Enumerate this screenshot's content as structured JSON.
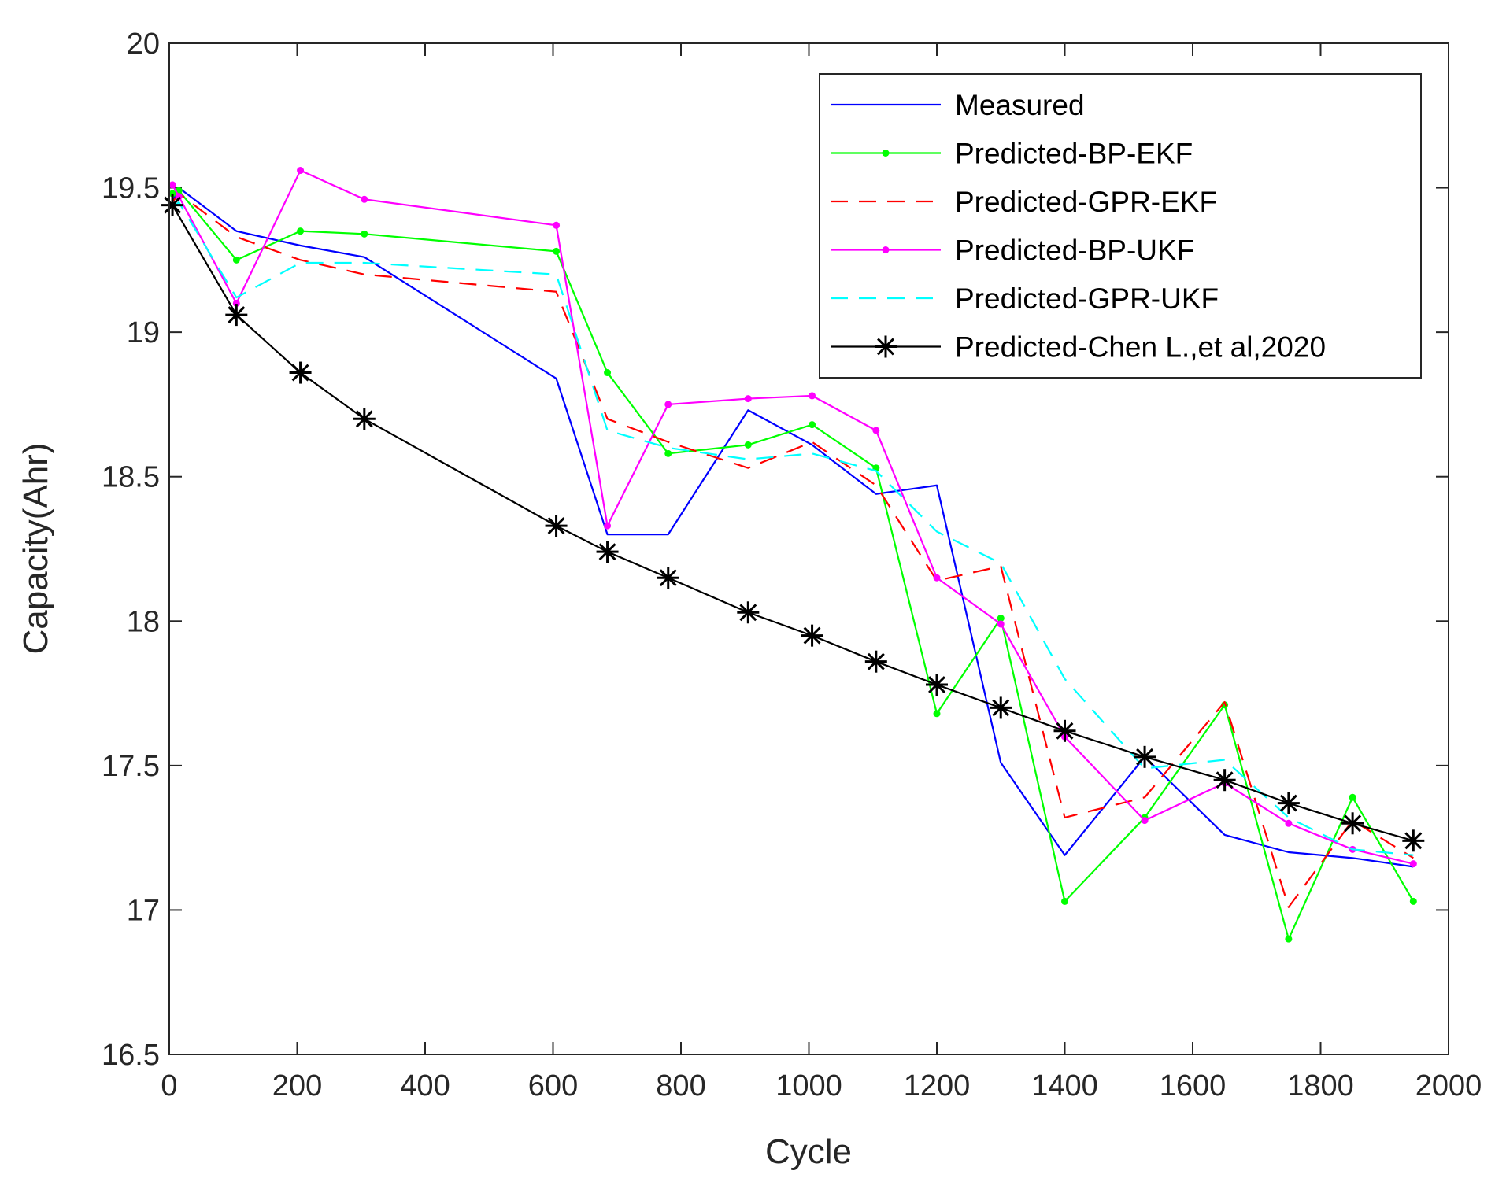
{
  "chart_data": {
    "type": "line",
    "title": "",
    "xlabel": "Cycle",
    "ylabel": "Capacity(Ahr)",
    "xlim": [
      0,
      2000
    ],
    "ylim": [
      16.5,
      20
    ],
    "xticks": [
      0,
      200,
      400,
      600,
      800,
      1000,
      1200,
      1400,
      1600,
      1800,
      2000
    ],
    "yticks": [
      16.5,
      17,
      17.5,
      18,
      18.5,
      19,
      19.5,
      20
    ],
    "grid": false,
    "legend_position": "top-right",
    "series": [
      {
        "name": "Measured",
        "color": "#0000ff",
        "dash": "solid",
        "marker": "none",
        "points": [
          [
            5,
            19.45
          ],
          [
            15,
            19.5
          ],
          [
            105,
            19.35
          ],
          [
            205,
            19.3
          ],
          [
            305,
            19.26
          ],
          [
            605,
            18.84
          ],
          [
            685,
            18.3
          ],
          [
            780,
            18.3
          ],
          [
            905,
            18.73
          ],
          [
            1005,
            18.61
          ],
          [
            1105,
            18.44
          ],
          [
            1200,
            18.47
          ],
          [
            1300,
            17.51
          ],
          [
            1400,
            17.19
          ],
          [
            1525,
            17.53
          ],
          [
            1650,
            17.26
          ],
          [
            1750,
            17.2
          ],
          [
            1850,
            17.18
          ],
          [
            1945,
            17.15
          ]
        ]
      },
      {
        "name": "Predicted-BP-EKF",
        "color": "#00ff00",
        "dash": "solid",
        "marker": "dot",
        "points": [
          [
            5,
            19.48
          ],
          [
            15,
            19.49
          ],
          [
            105,
            19.25
          ],
          [
            205,
            19.35
          ],
          [
            305,
            19.34
          ],
          [
            605,
            19.28
          ],
          [
            685,
            18.86
          ],
          [
            780,
            18.58
          ],
          [
            905,
            18.61
          ],
          [
            1005,
            18.68
          ],
          [
            1105,
            18.53
          ],
          [
            1200,
            17.68
          ],
          [
            1300,
            18.01
          ],
          [
            1400,
            17.03
          ],
          [
            1525,
            17.32
          ],
          [
            1650,
            17.71
          ],
          [
            1750,
            16.9
          ],
          [
            1850,
            17.39
          ],
          [
            1945,
            17.03
          ]
        ]
      },
      {
        "name": "Predicted-GPR-EKF",
        "color": "#ff0000",
        "dash": "dashed",
        "marker": "none",
        "points": [
          [
            5,
            19.45
          ],
          [
            15,
            19.48
          ],
          [
            105,
            19.33
          ],
          [
            205,
            19.25
          ],
          [
            305,
            19.2
          ],
          [
            605,
            19.14
          ],
          [
            685,
            18.7
          ],
          [
            780,
            18.62
          ],
          [
            905,
            18.53
          ],
          [
            1005,
            18.62
          ],
          [
            1105,
            18.47
          ],
          [
            1200,
            18.14
          ],
          [
            1300,
            18.19
          ],
          [
            1400,
            17.32
          ],
          [
            1525,
            17.39
          ],
          [
            1650,
            17.72
          ],
          [
            1750,
            17.01
          ],
          [
            1850,
            17.31
          ],
          [
            1945,
            17.18
          ]
        ]
      },
      {
        "name": "Predicted-BP-UKF",
        "color": "#ff00ff",
        "dash": "solid",
        "marker": "dot",
        "points": [
          [
            5,
            19.51
          ],
          [
            15,
            19.47
          ],
          [
            105,
            19.1
          ],
          [
            205,
            19.56
          ],
          [
            305,
            19.46
          ],
          [
            605,
            19.37
          ],
          [
            685,
            18.33
          ],
          [
            780,
            18.75
          ],
          [
            905,
            18.77
          ],
          [
            1005,
            18.78
          ],
          [
            1105,
            18.66
          ],
          [
            1200,
            18.15
          ],
          [
            1300,
            17.99
          ],
          [
            1400,
            17.6
          ],
          [
            1525,
            17.31
          ],
          [
            1650,
            17.44
          ],
          [
            1750,
            17.3
          ],
          [
            1850,
            17.21
          ],
          [
            1945,
            17.16
          ]
        ]
      },
      {
        "name": "Predicted-GPR-UKF",
        "color": "#00ffff",
        "dash": "dashed",
        "marker": "none",
        "points": [
          [
            5,
            19.43
          ],
          [
            15,
            19.45
          ],
          [
            105,
            19.12
          ],
          [
            205,
            19.24
          ],
          [
            305,
            19.24
          ],
          [
            605,
            19.2
          ],
          [
            685,
            18.66
          ],
          [
            780,
            18.6
          ],
          [
            905,
            18.56
          ],
          [
            1005,
            18.58
          ],
          [
            1105,
            18.52
          ],
          [
            1200,
            18.31
          ],
          [
            1300,
            18.2
          ],
          [
            1400,
            17.8
          ],
          [
            1525,
            17.49
          ],
          [
            1650,
            17.52
          ],
          [
            1750,
            17.32
          ],
          [
            1850,
            17.21
          ],
          [
            1945,
            17.19
          ]
        ]
      },
      {
        "name": "Predicted-Chen L.,et al,2020",
        "color": "#000000",
        "dash": "solid",
        "marker": "star",
        "points": [
          [
            5,
            19.44
          ],
          [
            105,
            19.06
          ],
          [
            205,
            18.86
          ],
          [
            305,
            18.7
          ],
          [
            605,
            18.33
          ],
          [
            685,
            18.24
          ],
          [
            780,
            18.15
          ],
          [
            905,
            18.03
          ],
          [
            1005,
            17.95
          ],
          [
            1105,
            17.86
          ],
          [
            1200,
            17.78
          ],
          [
            1300,
            17.7
          ],
          [
            1400,
            17.62
          ],
          [
            1525,
            17.53
          ],
          [
            1650,
            17.45
          ],
          [
            1750,
            17.37
          ],
          [
            1850,
            17.3
          ],
          [
            1945,
            17.24
          ]
        ]
      }
    ]
  }
}
